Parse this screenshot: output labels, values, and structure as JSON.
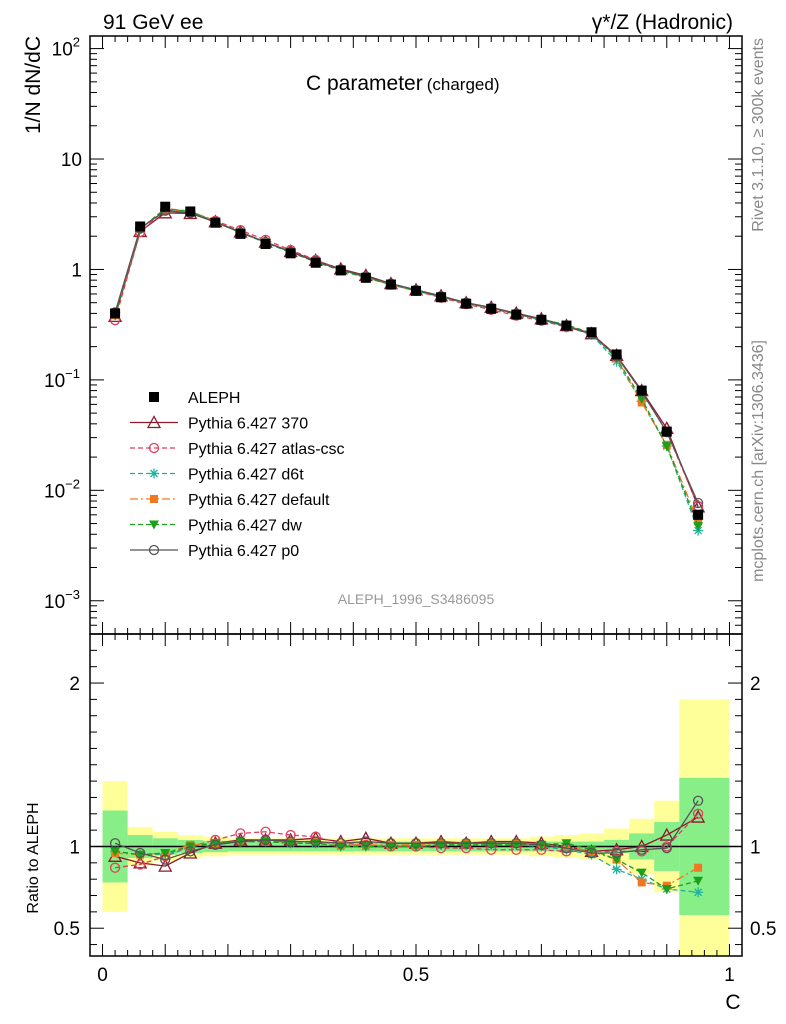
{
  "header": {
    "left": "91 GeV ee",
    "right": "γ*/Z (Hadronic)"
  },
  "side": {
    "rivet": "Rivet 3.1.10, ≥ 300k events",
    "mcplots": "mcplots.cern.ch [arXiv:1306.3436]"
  },
  "chart_data": {
    "type": "line",
    "title_main": "C parameter",
    "title_sub": "(charged)",
    "analysis_tag": "ALEPH_1996_S3486095",
    "ylabel": "1/N dN/dC",
    "ratio_ylabel": "Ratio to ALEPH",
    "xlabel": "C",
    "xlim": [
      -0.02,
      1.02
    ],
    "ylim_log": [
      0.0005,
      130
    ],
    "ratio_ylim": [
      0.33,
      2.3
    ],
    "x_ticks": [
      {
        "v": 0,
        "label": "0"
      },
      {
        "v": 0.5,
        "label": "0.5"
      },
      {
        "v": 1,
        "label": "1"
      }
    ],
    "y_ticks": [
      {
        "v": 100,
        "base": "10",
        "exp": "2"
      },
      {
        "v": 10,
        "base": "10",
        "exp": ""
      },
      {
        "v": 1,
        "base": "1",
        "exp": ""
      },
      {
        "v": 0.1,
        "base": "10",
        "exp": "−1"
      },
      {
        "v": 0.01,
        "base": "10",
        "exp": "−2"
      },
      {
        "v": 0.001,
        "base": "10",
        "exp": "−3"
      }
    ],
    "ratio_ticks": [
      {
        "v": 0.5,
        "label": "0.5"
      },
      {
        "v": 1,
        "label": "1"
      },
      {
        "v": 2,
        "label": "2"
      }
    ],
    "x": [
      0.02,
      0.06,
      0.1,
      0.14,
      0.18,
      0.22,
      0.26,
      0.3,
      0.34,
      0.38,
      0.42,
      0.46,
      0.5,
      0.54,
      0.58,
      0.62,
      0.66,
      0.7,
      0.74,
      0.78,
      0.82,
      0.86,
      0.9,
      0.95
    ],
    "band_edges": [
      0,
      0.04,
      0.08,
      0.12,
      0.16,
      0.2,
      0.24,
      0.28,
      0.32,
      0.36,
      0.4,
      0.44,
      0.48,
      0.52,
      0.56,
      0.6,
      0.64,
      0.68,
      0.72,
      0.76,
      0.8,
      0.84,
      0.88,
      0.92,
      1.0
    ],
    "band_inner": [
      0.22,
      0.07,
      0.05,
      0.04,
      0.035,
      0.03,
      0.03,
      0.03,
      0.03,
      0.03,
      0.03,
      0.03,
      0.03,
      0.03,
      0.03,
      0.03,
      0.03,
      0.03,
      0.03,
      0.03,
      0.04,
      0.08,
      0.15,
      0.42
    ],
    "band_outer": [
      0.4,
      0.12,
      0.09,
      0.07,
      0.06,
      0.05,
      0.05,
      0.05,
      0.05,
      0.05,
      0.05,
      0.05,
      0.05,
      0.05,
      0.05,
      0.05,
      0.05,
      0.06,
      0.07,
      0.08,
      0.11,
      0.17,
      0.28,
      0.9
    ],
    "data": {
      "name": "ALEPH",
      "values": [
        0.4,
        2.45,
        3.7,
        3.35,
        2.65,
        2.1,
        1.7,
        1.4,
        1.15,
        0.98,
        0.84,
        0.73,
        0.64,
        0.56,
        0.49,
        0.44,
        0.39,
        0.35,
        0.31,
        0.27,
        0.17,
        0.08,
        0.034,
        0.006
      ]
    },
    "series": [
      {
        "name": "Pythia 6.427 370",
        "color": "#8b1a2b",
        "dash": "",
        "marker": "triangle-open",
        "ratio": [
          0.94,
          0.9,
          0.88,
          0.96,
          1.02,
          1.04,
          1.04,
          1.04,
          1.05,
          1.03,
          1.05,
          1.02,
          1.02,
          1.03,
          1.02,
          1.03,
          1.03,
          1.02,
          1.0,
          0.97,
          0.98,
          1.0,
          1.07,
          1.18
        ]
      },
      {
        "name": "Pythia 6.427 atlas-csc",
        "color": "#e0405e",
        "dash": "5,3",
        "marker": "circle-open",
        "ratio": [
          0.87,
          0.89,
          0.94,
          1.0,
          1.04,
          1.08,
          1.09,
          1.07,
          1.06,
          1.02,
          1.01,
          1.0,
          1.0,
          0.99,
          0.99,
          0.98,
          0.98,
          0.98,
          0.97,
          0.97,
          0.97,
          0.97,
          1.0,
          1.2
        ]
      },
      {
        "name": "Pythia 6.427 d6t",
        "color": "#20b2a0",
        "dash": "5,3",
        "marker": "star",
        "ratio": [
          0.97,
          0.95,
          0.95,
          1.0,
          1.02,
          1.03,
          1.03,
          1.02,
          1.02,
          1.0,
          1.0,
          1.0,
          1.0,
          1.01,
          1.01,
          1.01,
          1.01,
          1.0,
          0.98,
          0.95,
          0.86,
          0.8,
          0.74,
          0.72
        ]
      },
      {
        "name": "Pythia 6.427 default",
        "color": "#f07820",
        "dash": "8,3,2,3",
        "marker": "square",
        "ratio": [
          0.96,
          0.95,
          0.96,
          1.01,
          1.02,
          1.03,
          1.03,
          1.03,
          1.03,
          1.01,
          1.01,
          1.01,
          1.01,
          1.02,
          1.02,
          1.02,
          1.02,
          1.01,
          1.0,
          0.97,
          0.92,
          0.78,
          0.76,
          0.87
        ]
      },
      {
        "name": "Pythia 6.427 dw",
        "color": "#1aa01a",
        "dash": "5,3",
        "marker": "triangle-down",
        "ratio": [
          0.97,
          0.95,
          0.96,
          1.0,
          1.02,
          1.03,
          1.03,
          1.02,
          1.02,
          1.0,
          1.0,
          1.0,
          1.0,
          1.01,
          1.01,
          1.01,
          1.01,
          1.01,
          1.02,
          0.98,
          0.92,
          0.84,
          0.74,
          0.79
        ]
      },
      {
        "name": "Pythia 6.427 p0",
        "color": "#555555",
        "dash": "",
        "marker": "circle-open",
        "ratio": [
          1.02,
          0.96,
          0.92,
          0.97,
          1.01,
          1.03,
          1.04,
          1.03,
          1.03,
          1.02,
          1.03,
          1.02,
          1.02,
          1.02,
          1.02,
          1.02,
          1.02,
          1.01,
          0.99,
          0.96,
          0.96,
          0.98,
          0.99,
          1.28
        ]
      }
    ],
    "legend_position": "middle-left"
  }
}
